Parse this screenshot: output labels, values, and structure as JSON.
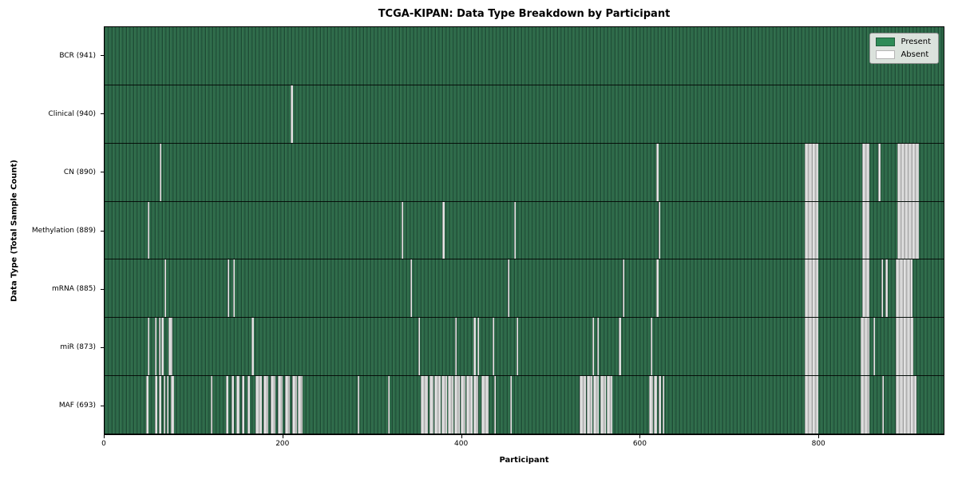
{
  "title": "TCGA-KIPAN: Data Type Breakdown by Participant",
  "axes": {
    "xlabel": "Participant",
    "ylabel": "Data Type (Total Sample Count)"
  },
  "legend": {
    "present_label": "Present",
    "absent_label": "Absent"
  },
  "colors": {
    "present": "#2e8b57",
    "present_dark_stripe": "#1d4a34",
    "absent": "#ffffff",
    "absent_stripe": "#9a9a9a",
    "legend_bg": "#e5e9e5",
    "axis": "#000000"
  },
  "chart_data": {
    "type": "heatmap",
    "title": "TCGA-KIPAN: Data Type Breakdown by Participant",
    "xlabel": "Participant",
    "ylabel": "Data Type (Total Sample Count)",
    "legend": [
      "Present",
      "Absent"
    ],
    "legend_position": "upper right",
    "x_max": 941,
    "x_ticks": [
      0,
      200,
      400,
      600,
      800
    ],
    "value_encoding": "green = data present for participant, white/gray = absent",
    "rows": [
      {
        "key": "bcr",
        "label": "BCR (941)",
        "total_samples": 941,
        "absent_ranges": []
      },
      {
        "key": "clinical",
        "label": "Clinical (940)",
        "total_samples": 940,
        "absent_ranges": [
          [
            209,
            211
          ]
        ]
      },
      {
        "key": "cn",
        "label": "CN (890)",
        "total_samples": 890,
        "absent_ranges": [
          [
            62,
            64
          ],
          [
            619,
            621
          ],
          [
            785,
            800
          ],
          [
            850,
            858
          ],
          [
            868,
            870
          ],
          [
            889,
            913
          ]
        ]
      },
      {
        "key": "methylation",
        "label": "Methylation (889)",
        "total_samples": 889,
        "absent_ranges": [
          [
            48,
            50
          ],
          [
            333,
            335
          ],
          [
            379,
            381
          ],
          [
            459,
            461
          ],
          [
            621,
            623
          ],
          [
            785,
            800
          ],
          [
            850,
            858
          ],
          [
            889,
            913
          ]
        ]
      },
      {
        "key": "mrna",
        "label": "mRNA (885)",
        "total_samples": 885,
        "absent_ranges": [
          [
            67,
            69
          ],
          [
            138,
            140
          ],
          [
            144,
            146
          ],
          [
            343,
            345
          ],
          [
            452,
            454
          ],
          [
            581,
            583
          ],
          [
            619,
            621
          ],
          [
            785,
            800
          ],
          [
            850,
            858
          ],
          [
            871,
            873
          ],
          [
            876,
            878
          ],
          [
            887,
            906
          ]
        ]
      },
      {
        "key": "mir",
        "label": "miR (873)",
        "total_samples": 873,
        "absent_ranges": [
          [
            48,
            50
          ],
          [
            56,
            58
          ],
          [
            61,
            63
          ],
          [
            64,
            66
          ],
          [
            72,
            76
          ],
          [
            165,
            167
          ],
          [
            352,
            354
          ],
          [
            393,
            395
          ],
          [
            414,
            416
          ],
          [
            418,
            420
          ],
          [
            435,
            437
          ],
          [
            462,
            464
          ],
          [
            547,
            549
          ],
          [
            552,
            554
          ],
          [
            577,
            579
          ],
          [
            612,
            614
          ],
          [
            785,
            800
          ],
          [
            848,
            858
          ],
          [
            862,
            864
          ],
          [
            887,
            907
          ]
        ]
      },
      {
        "key": "maf",
        "label": "MAF (693)",
        "total_samples": 693,
        "absent_ranges": [
          [
            47,
            49
          ],
          [
            56,
            59
          ],
          [
            61,
            64
          ],
          [
            66,
            68
          ],
          [
            70,
            72
          ],
          [
            74,
            78
          ],
          [
            119,
            121
          ],
          [
            136,
            139
          ],
          [
            142,
            145
          ],
          [
            148,
            151
          ],
          [
            154,
            157
          ],
          [
            160,
            163
          ],
          [
            169,
            176
          ],
          [
            178,
            184
          ],
          [
            186,
            192
          ],
          [
            194,
            200
          ],
          [
            202,
            208
          ],
          [
            210,
            216
          ],
          [
            217,
            222
          ],
          [
            284,
            286
          ],
          [
            318,
            320
          ],
          [
            355,
            363
          ],
          [
            364,
            369
          ],
          [
            370,
            377
          ],
          [
            378,
            384
          ],
          [
            385,
            391
          ],
          [
            392,
            398
          ],
          [
            399,
            405
          ],
          [
            406,
            413
          ],
          [
            414,
            419
          ],
          [
            423,
            431
          ],
          [
            437,
            439
          ],
          [
            455,
            457
          ],
          [
            533,
            540
          ],
          [
            541,
            547
          ],
          [
            548,
            554
          ],
          [
            556,
            562
          ],
          [
            563,
            569
          ],
          [
            611,
            615
          ],
          [
            616,
            620
          ],
          [
            621,
            624
          ],
          [
            626,
            628
          ],
          [
            785,
            800
          ],
          [
            848,
            858
          ],
          [
            872,
            874
          ],
          [
            887,
            911
          ]
        ]
      }
    ]
  }
}
